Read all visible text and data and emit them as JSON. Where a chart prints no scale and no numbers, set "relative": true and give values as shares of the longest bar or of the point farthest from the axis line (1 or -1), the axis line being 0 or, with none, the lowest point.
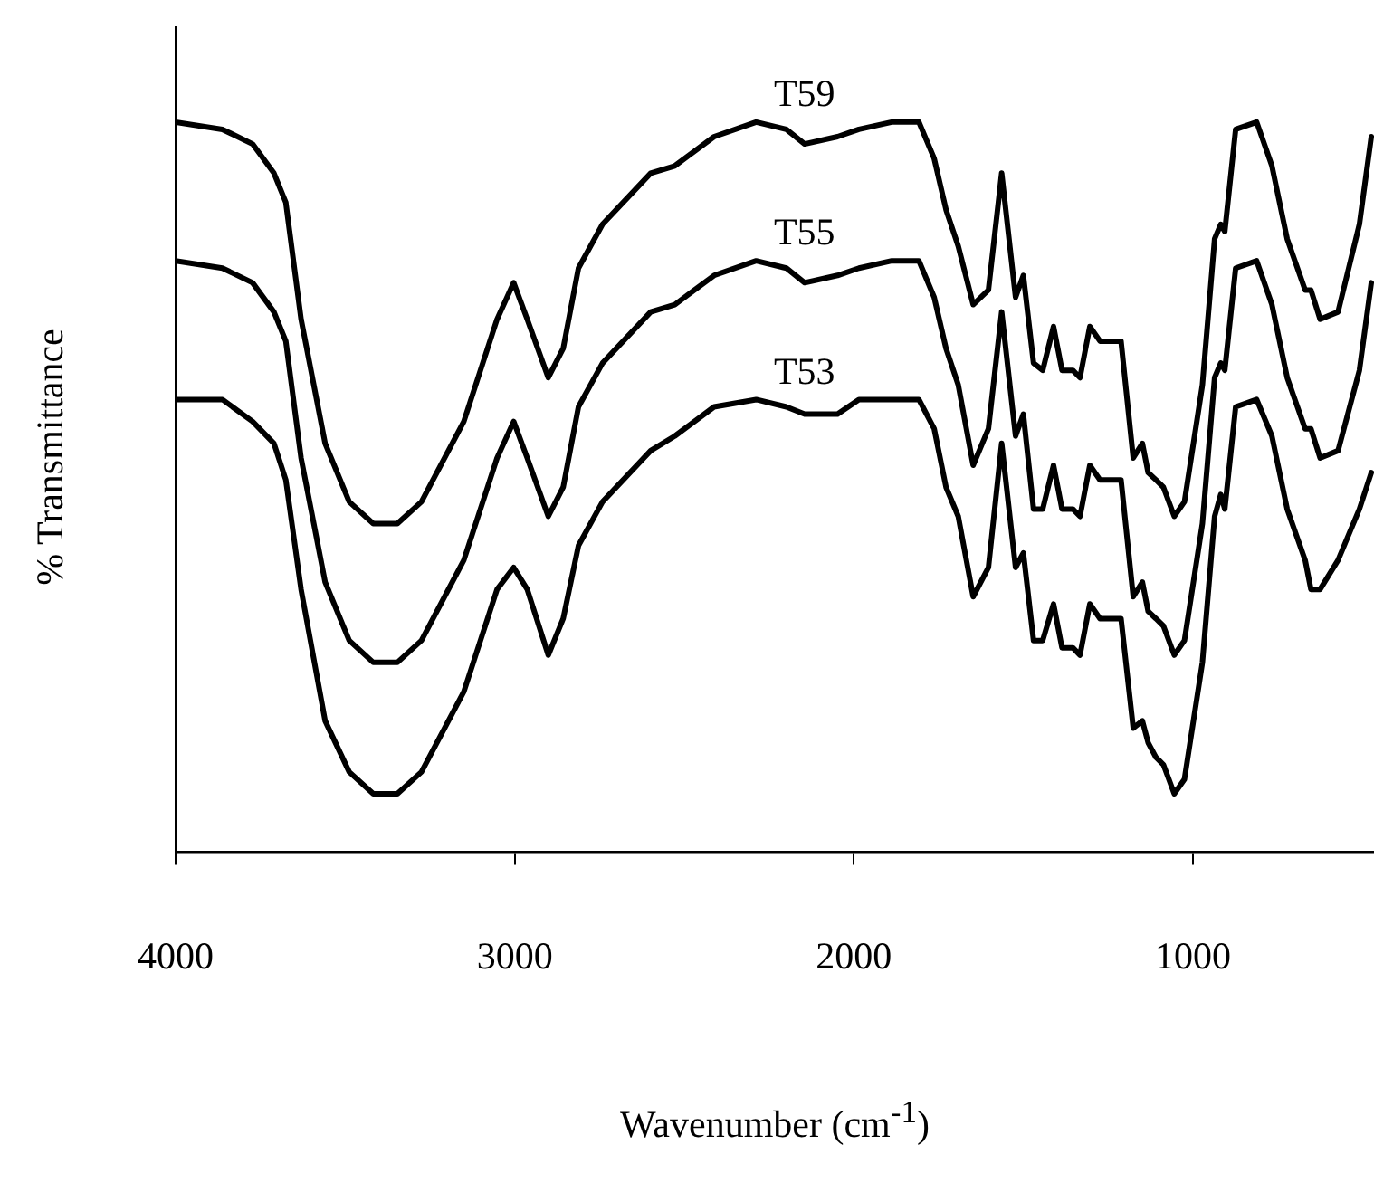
{
  "chart_data": {
    "type": "line",
    "xlabel": "Wavenumber (cm$^{-1}$)",
    "ylabel": "% Transmittance",
    "relative": true,
    "legend": false,
    "grid": false,
    "marker": "none",
    "line_style": "solid",
    "xlim": [
      4000,
      466
    ],
    "xticks": [
      4000,
      3000,
      2000,
      1000
    ],
    "x": [
      4000,
      3862,
      3773,
      3710,
      3675,
      3630,
      3559,
      3488,
      3417,
      3346,
      3275,
      3150,
      3052,
      3003,
      2963,
      2901,
      2857,
      2812,
      2741,
      2599,
      2528,
      2412,
      2288,
      2199,
      2145,
      2048,
      1985,
      1888,
      1808,
      1763,
      1728,
      1692,
      1648,
      1603,
      1564,
      1523,
      1500,
      1470,
      1443,
      1411,
      1386,
      1354,
      1333,
      1304,
      1274,
      1212,
      1176,
      1149,
      1132,
      1109,
      1087,
      1055,
      1025,
      972,
      936,
      918,
      906,
      874,
      812,
      767,
      722,
      669,
      652,
      625,
      572,
      509,
      474
    ],
    "series": [
      {
        "name": "T59",
        "color": "#000000",
        "values": [
          1.0,
          0.99,
          0.97,
          0.93,
          0.89,
          0.73,
          0.56,
          0.48,
          0.45,
          0.45,
          0.48,
          0.59,
          0.73,
          0.78,
          0.73,
          0.65,
          0.69,
          0.8,
          0.86,
          0.93,
          0.94,
          0.98,
          1.0,
          0.99,
          0.97,
          0.98,
          0.99,
          1.0,
          1.0,
          0.95,
          0.88,
          0.83,
          0.75,
          0.77,
          0.93,
          0.76,
          0.79,
          0.67,
          0.66,
          0.72,
          0.66,
          0.66,
          0.65,
          0.72,
          0.7,
          0.7,
          0.54,
          0.56,
          0.52,
          0.51,
          0.5,
          0.46,
          0.48,
          0.64,
          0.84,
          0.86,
          0.85,
          0.99,
          1.0,
          0.94,
          0.84,
          0.77,
          0.77,
          0.73,
          0.74,
          0.86,
          0.98
        ]
      },
      {
        "name": "T55",
        "color": "#000000",
        "values": [
          0.81,
          0.8,
          0.78,
          0.74,
          0.7,
          0.54,
          0.37,
          0.29,
          0.26,
          0.26,
          0.29,
          0.4,
          0.54,
          0.59,
          0.54,
          0.46,
          0.5,
          0.61,
          0.67,
          0.74,
          0.75,
          0.79,
          0.81,
          0.8,
          0.78,
          0.79,
          0.8,
          0.81,
          0.81,
          0.76,
          0.69,
          0.64,
          0.53,
          0.58,
          0.74,
          0.57,
          0.6,
          0.47,
          0.47,
          0.53,
          0.47,
          0.47,
          0.46,
          0.53,
          0.51,
          0.51,
          0.35,
          0.37,
          0.33,
          0.32,
          0.31,
          0.27,
          0.29,
          0.45,
          0.65,
          0.67,
          0.66,
          0.8,
          0.81,
          0.75,
          0.65,
          0.58,
          0.58,
          0.54,
          0.55,
          0.66,
          0.78
        ]
      },
      {
        "name": "T53",
        "color": "#000000",
        "values": [
          0.62,
          0.62,
          0.59,
          0.56,
          0.51,
          0.36,
          0.18,
          0.11,
          0.08,
          0.08,
          0.11,
          0.22,
          0.36,
          0.39,
          0.36,
          0.27,
          0.32,
          0.42,
          0.48,
          0.55,
          0.57,
          0.61,
          0.62,
          0.61,
          0.6,
          0.6,
          0.62,
          0.62,
          0.62,
          0.58,
          0.5,
          0.46,
          0.35,
          0.39,
          0.56,
          0.39,
          0.41,
          0.29,
          0.29,
          0.34,
          0.28,
          0.28,
          0.27,
          0.34,
          0.32,
          0.32,
          0.17,
          0.18,
          0.15,
          0.13,
          0.12,
          0.08,
          0.1,
          0.26,
          0.46,
          0.49,
          0.47,
          0.61,
          0.62,
          0.57,
          0.47,
          0.4,
          0.36,
          0.36,
          0.4,
          0.47,
          0.52
        ]
      }
    ]
  }
}
